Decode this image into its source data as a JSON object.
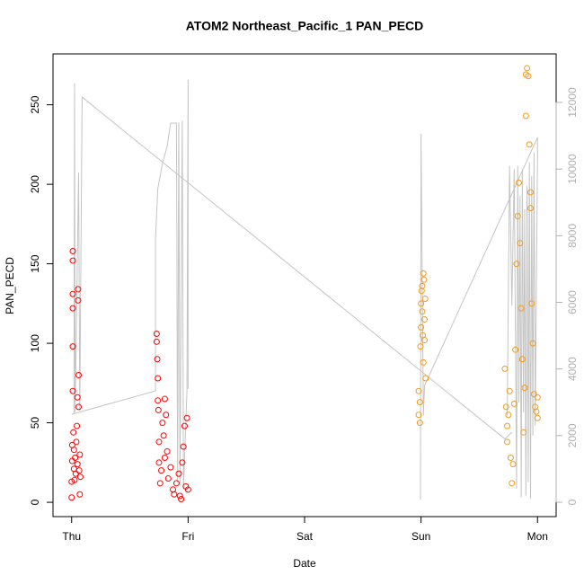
{
  "chart_data": {
    "type": "scatter",
    "title": "ATOM2 Northeast_Pacific_1 PAN_PECD",
    "xlabel": "Date",
    "ylabel": "PAN_PECD",
    "xlim": [
      -0.16,
      4.16
    ],
    "xticks": [
      {
        "value": 0,
        "label": "Thu"
      },
      {
        "value": 1,
        "label": "Fri"
      },
      {
        "value": 2,
        "label": "Sat"
      },
      {
        "value": 3,
        "label": "Sun"
      },
      {
        "value": 4,
        "label": "Mon"
      }
    ],
    "ylim": [
      -9,
      282
    ],
    "yticks": [
      0,
      50,
      100,
      150,
      200,
      250
    ],
    "y2lim": [
      -431,
      13457
    ],
    "y2ticks": [
      0,
      2000,
      4000,
      6000,
      8000,
      10000,
      12000
    ],
    "y2color": "#b0b0b0",
    "series": [
      {
        "type": "line",
        "axis": "y2",
        "color": "#c4c4c4",
        "x": [
          0.0,
          0.02,
          0.025,
          0.03,
          0.06,
          0.07,
          0.09,
          3.72,
          3.78,
          null,
          0.0,
          0.72,
          0.72,
          0.74,
          0.78,
          0.82,
          0.85,
          0.9,
          0.91,
          0.92,
          0.93,
          0.95,
          0.96,
          0.99,
          1.0,
          1.0,
          null,
          2.995,
          3.0,
          3.02,
          3.03,
          4.0,
          4.0,
          3.98,
          3.97,
          3.96,
          3.95,
          3.94,
          3.93,
          3.92,
          3.91,
          3.9,
          3.89,
          3.88,
          3.87,
          3.86,
          3.85,
          3.84,
          3.83,
          3.82,
          3.8,
          3.78,
          3.76,
          3.74
        ],
        "values": [
          2640,
          2660,
          12570,
          2700,
          9900,
          2750,
          12160,
          1900,
          2100,
          null,
          2640,
          3340,
          7930,
          9420,
          10170,
          10680,
          11380,
          11380,
          600,
          11400,
          500,
          11450,
          400,
          3340,
          12680,
          3400,
          null,
          80,
          11060,
          2600,
          3500,
          10950,
          10300,
          2300,
          10500,
          2000,
          9800,
          100,
          10200,
          600,
          9500,
          200,
          8800,
          2700,
          10000,
          150,
          9200,
          3000,
          10100,
          400,
          10000,
          5900,
          10100,
          2600
        ]
      },
      {
        "type": "scatter",
        "axis": "y",
        "color": "#ff0000",
        "x": [
          0.0,
          0.0,
          0.005,
          0.005,
          0.01,
          0.01,
          0.01,
          0.01,
          0.01,
          0.01,
          0.015,
          0.02,
          0.02,
          0.025,
          0.03,
          0.035,
          0.04,
          0.045,
          0.05,
          0.05,
          0.055,
          0.055,
          0.06,
          0.06,
          0.065,
          0.07,
          0.07,
          0.075,
          0.73,
          0.73,
          0.735,
          0.74,
          0.74,
          0.745,
          0.75,
          0.75,
          0.76,
          0.77,
          0.78,
          0.79,
          0.8,
          0.8,
          0.81,
          0.82,
          0.83,
          0.85,
          0.87,
          0.88,
          0.9,
          0.92,
          0.93,
          0.95,
          0.96,
          0.97,
          0.98,
          0.99,
          1.0,
          0.94
        ],
        "values": [
          3,
          13,
          26,
          36,
          158,
          152,
          122,
          131,
          98,
          70,
          44,
          33,
          21,
          14,
          28,
          18,
          38,
          48,
          66,
          24,
          134,
          127,
          80,
          60,
          20,
          30,
          5,
          16,
          106,
          101,
          90,
          78,
          64,
          58,
          38,
          25,
          12,
          20,
          50,
          42,
          28,
          65,
          55,
          32,
          15,
          22,
          8,
          5,
          12,
          18,
          4,
          25,
          35,
          48,
          10,
          53,
          8,
          2
        ]
      },
      {
        "type": "scatter",
        "axis": "y",
        "color": "#f39a1c",
        "x": [
          2.98,
          2.98,
          2.99,
          2.99,
          2.995,
          3.0,
          3.0,
          3.005,
          3.01,
          3.01,
          3.015,
          3.02,
          3.02,
          3.025,
          3.03,
          3.03,
          3.04,
          3.035,
          3.72,
          3.73,
          3.74,
          3.74,
          3.75,
          3.76,
          3.77,
          3.78,
          3.79,
          3.8,
          3.81,
          3.82,
          3.83,
          3.84,
          3.85,
          3.86,
          3.87,
          3.88,
          3.89,
          3.9,
          3.9,
          3.91,
          3.92,
          3.93,
          3.94,
          3.94,
          3.95,
          3.96,
          3.97,
          3.98,
          3.99,
          4.0,
          4.0
        ],
        "values": [
          70,
          55,
          63,
          50,
          98,
          110,
          125,
          133,
          136,
          120,
          105,
          88,
          144,
          140,
          115,
          102,
          78,
          128,
          84,
          60,
          48,
          38,
          55,
          70,
          28,
          12,
          24,
          62,
          96,
          150,
          180,
          201,
          163,
          122,
          90,
          44,
          72,
          243,
          269,
          273,
          268,
          225,
          195,
          185,
          125,
          100,
          68,
          60,
          57,
          66,
          53
        ]
      }
    ]
  }
}
